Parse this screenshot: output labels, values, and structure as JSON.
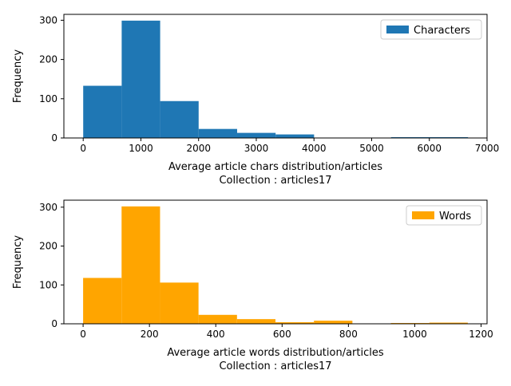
{
  "chart_data": [
    {
      "type": "bar",
      "title": "",
      "xlabel": "Average article chars distribution/articles",
      "xlabel2": "Collection : articles17",
      "ylabel": "Frequency",
      "xlim": [
        -335,
        7000
      ],
      "ylim": [
        0,
        315
      ],
      "xticks": [
        0,
        1000,
        2000,
        3000,
        4000,
        5000,
        6000,
        7000
      ],
      "yticks": [
        0,
        100,
        200,
        300
      ],
      "legend": {
        "label": "Characters",
        "position": "top-right"
      },
      "color": "#1f77b4",
      "bins": [
        {
          "x0": 0,
          "x1": 667,
          "value": 133
        },
        {
          "x0": 667,
          "x1": 1334,
          "value": 299
        },
        {
          "x0": 1334,
          "x1": 2001,
          "value": 94
        },
        {
          "x0": 2001,
          "x1": 2668,
          "value": 23
        },
        {
          "x0": 2668,
          "x1": 3335,
          "value": 13
        },
        {
          "x0": 3335,
          "x1": 4002,
          "value": 9
        },
        {
          "x0": 4002,
          "x1": 4669,
          "value": 0
        },
        {
          "x0": 4669,
          "x1": 5336,
          "value": 0
        },
        {
          "x0": 5336,
          "x1": 6003,
          "value": 2
        },
        {
          "x0": 6003,
          "x1": 6670,
          "value": 2
        }
      ]
    },
    {
      "type": "bar",
      "title": "",
      "xlabel": "Average article words distribution/articles",
      "xlabel2": "Collection : articles17",
      "ylabel": "Frequency",
      "xlim": [
        -58,
        1218
      ],
      "ylim": [
        0,
        318
      ],
      "xticks": [
        0,
        200,
        400,
        600,
        800,
        1000,
        1200
      ],
      "yticks": [
        0,
        100,
        200,
        300
      ],
      "legend": {
        "label": "Words",
        "position": "top-right"
      },
      "color": "#ffa500",
      "bins": [
        {
          "x0": 0,
          "x1": 116,
          "value": 118
        },
        {
          "x0": 116,
          "x1": 232,
          "value": 302
        },
        {
          "x0": 232,
          "x1": 348,
          "value": 106
        },
        {
          "x0": 348,
          "x1": 464,
          "value": 23
        },
        {
          "x0": 464,
          "x1": 580,
          "value": 12
        },
        {
          "x0": 580,
          "x1": 696,
          "value": 4
        },
        {
          "x0": 696,
          "x1": 812,
          "value": 8
        },
        {
          "x0": 812,
          "x1": 928,
          "value": 0
        },
        {
          "x0": 928,
          "x1": 1044,
          "value": 2
        },
        {
          "x0": 1044,
          "x1": 1160,
          "value": 3
        }
      ]
    }
  ]
}
